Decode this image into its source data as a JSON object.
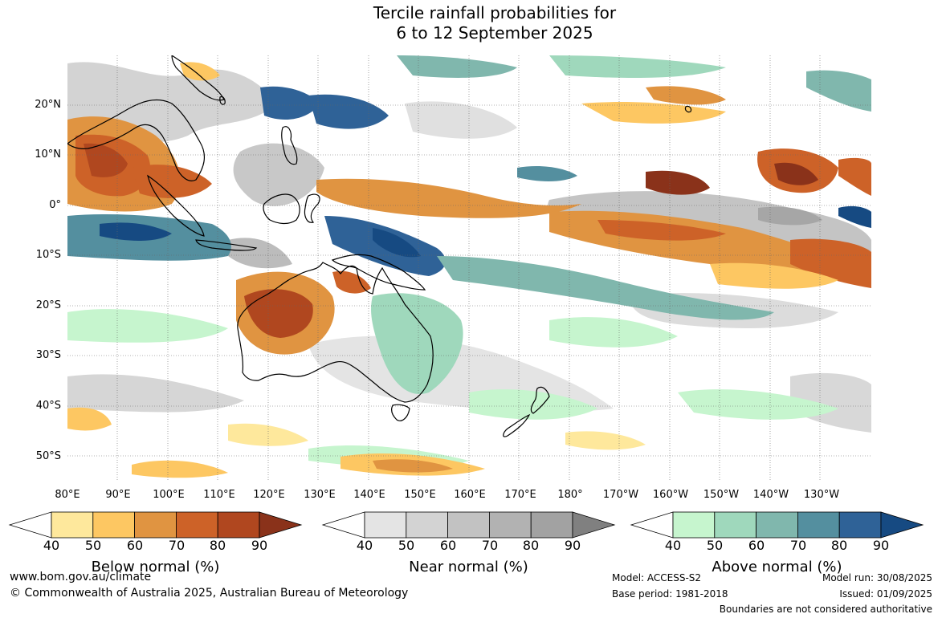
{
  "title": {
    "line1": "Tercile rainfall probabilities for",
    "line2": "6 to 12 September 2025"
  },
  "map": {
    "lat_labels": [
      "20°N",
      "10°N",
      "0°",
      "10°S",
      "20°S",
      "30°S",
      "40°S",
      "50°S"
    ],
    "lon_labels": [
      "80°E",
      "90°E",
      "100°E",
      "110°E",
      "120°E",
      "130°E",
      "140°E",
      "150°E",
      "160°E",
      "170°E",
      "180°",
      "170°W",
      "160°W",
      "150°W",
      "140°W",
      "130°W"
    ],
    "gridlines": true
  },
  "legends": [
    {
      "title": "Below normal (%)",
      "ticks": [
        "40",
        "50",
        "60",
        "70",
        "80",
        "90"
      ],
      "colors": [
        "#ffffff",
        "#fee89c",
        "#fdc762",
        "#e09441",
        "#cd6228",
        "#b0471f",
        "#8a321a"
      ]
    },
    {
      "title": "Near normal (%)",
      "ticks": [
        "40",
        "50",
        "60",
        "70",
        "80",
        "90"
      ],
      "colors": [
        "#ffffff",
        "#e4e4e4",
        "#d3d3d3",
        "#c2c2c2",
        "#b2b2b2",
        "#a2a2a2",
        "#808080"
      ]
    },
    {
      "title": "Above normal (%)",
      "ticks": [
        "40",
        "50",
        "60",
        "70",
        "80",
        "90"
      ],
      "colors": [
        "#ffffff",
        "#c6f5ce",
        "#9fd8bc",
        "#80b7ad",
        "#548f9f",
        "#2f6297",
        "#164a82"
      ]
    }
  ],
  "footer": {
    "website": "www.bom.gov.au/climate",
    "copyright": "© Commonwealth of Australia 2025, Australian Bureau of Meteorology",
    "model": "Model: ACCESS-S2",
    "base_period": "Base period: 1981-2018",
    "model_run": "Model run: 30/08/2025",
    "issued": "Issued: 01/09/2025",
    "disclaimer": "Boundaries are not considered authoritative"
  }
}
